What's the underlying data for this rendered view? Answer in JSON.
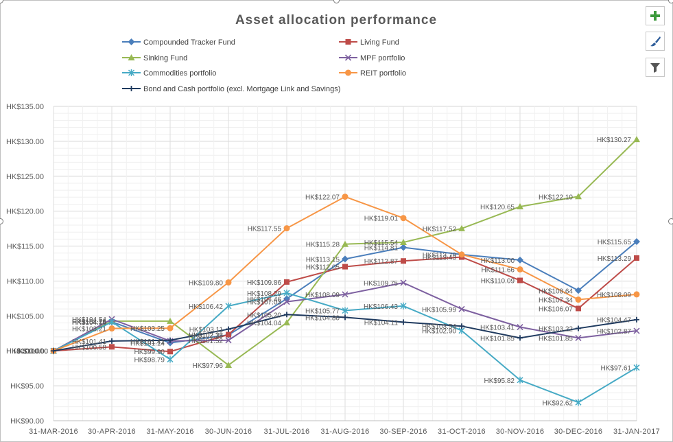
{
  "chart_data": {
    "type": "line",
    "title": "Asset allocation performance",
    "categories": [
      "31-MAR-2016",
      "30-APR-2016",
      "31-MAY-2016",
      "30-JUN-2016",
      "31-JUL-2016",
      "31-AUG-2016",
      "30-SEP-2016",
      "31-OCT-2016",
      "30-NOV-2016",
      "30-DEC-2016",
      "31-JAN-2017"
    ],
    "y_ticks": [
      "HK$90.00",
      "HK$95.00",
      "HK$100.00",
      "HK$105.00",
      "HK$110.00",
      "HK$115.00",
      "HK$120.00",
      "HK$125.00",
      "HK$130.00",
      "HK$135.00"
    ],
    "ylim": [
      90,
      135
    ],
    "grid": true,
    "legend_position": "top",
    "series": [
      {
        "name": "Compounded Tracker Fund",
        "color": "#4a7ebb",
        "marker": "diamond",
        "values": [
          100.0,
          104.16,
          101.14,
          102.28,
          107.46,
          113.15,
          114.81,
          113.79,
          113.0,
          108.64,
          115.65
        ],
        "labels": [
          "HK$100.00",
          "HK$104.16",
          "HK$101.14",
          "HK$102.28",
          "HK$107.46",
          "HK$113.15",
          "HK$114.81",
          "HK$113.79",
          "HK$113.00",
          "HK$108.64",
          "HK$115.65"
        ]
      },
      {
        "name": "Living Fund",
        "color": "#be4b48",
        "marker": "square",
        "values": [
          100.0,
          100.58,
          99.9,
          102.33,
          109.86,
          112.05,
          112.87,
          113.43,
          110.09,
          106.07,
          113.29
        ],
        "labels": [
          "HK$100.00",
          "HK$100.58",
          "HK$99.90",
          "HK$102.33",
          "HK$109.86",
          "HK$112.05",
          "HK$112.87",
          "HK$113.43",
          "HK$110.09",
          "HK$106.07",
          "HK$113.29"
        ]
      },
      {
        "name": "Sinking Fund",
        "color": "#98b954",
        "marker": "triangle",
        "values": [
          100.0,
          104.26,
          104.26,
          97.96,
          104.04,
          115.28,
          115.54,
          117.52,
          120.65,
          122.1,
          130.27
        ],
        "labels": [
          "HK$100.00",
          "HK$104.26",
          "",
          "HK$97.96",
          "HK$104.04",
          "HK$115.28",
          "HK$115.54",
          "HK$117.52",
          "HK$120.65",
          "HK$122.10",
          "HK$130.27"
        ]
      },
      {
        "name": "MPF portfolio",
        "color": "#7d60a0",
        "marker": "x",
        "values": [
          100.0,
          104.54,
          101.41,
          101.52,
          107.03,
          108.09,
          109.75,
          105.99,
          103.41,
          101.85,
          102.87
        ],
        "labels": [
          "HK$100.00",
          "HK$104.54",
          "HK$101.41",
          "HK$101.52",
          "HK$107.03",
          "HK$108.09",
          "HK$109.75",
          "HK$105.99",
          "HK$103.41",
          "HK$101.85",
          "HK$102.87"
        ]
      },
      {
        "name": "Commodities portfolio",
        "color": "#46aac5",
        "marker": "star",
        "values": [
          100.0,
          104.14,
          98.79,
          106.42,
          108.29,
          105.77,
          106.43,
          102.9,
          95.82,
          92.62,
          97.61
        ],
        "labels": [
          "HK$100.00",
          "HK$104.14",
          "HK$98.79",
          "HK$106.42",
          "HK$108.29",
          "HK$105.77",
          "HK$106.43",
          "HK$102.90",
          "HK$95.82",
          "HK$92.62",
          "HK$97.61"
        ]
      },
      {
        "name": "REIT portfolio",
        "color": "#f79646",
        "marker": "circle",
        "values": [
          100.0,
          103.21,
          103.25,
          109.8,
          117.55,
          122.07,
          119.01,
          113.79,
          111.66,
          107.34,
          108.09
        ],
        "labels": [
          "HK$100.00",
          "HK$103.21",
          "HK$103.25",
          "HK$109.80",
          "HK$117.55",
          "HK$122.07",
          "HK$119.01",
          "",
          "HK$111.66",
          "HK$107.34",
          "HK$108.09"
        ]
      },
      {
        "name": "Bond and Cash portfolio (excl. Mortgage Link and Savings)",
        "color": "#1f3a5f",
        "marker": "plus",
        "values": [
          100.0,
          101.41,
          101.52,
          103.11,
          105.2,
          104.8,
          104.11,
          103.54,
          101.85,
          103.22,
          104.47
        ],
        "labels": [
          "HK$100.00",
          "HK$101.41",
          "",
          "HK$103.11",
          "HK$105.20",
          "HK$104.80",
          "HK$104.11",
          "HK$103.54",
          "HK$101.85",
          "HK$103.22",
          "HK$104.47"
        ]
      }
    ]
  },
  "toolbar": {
    "buttons": [
      {
        "icon": "plus-icon",
        "name": "chart-elements-button"
      },
      {
        "icon": "paintbrush-icon",
        "name": "chart-styles-button"
      },
      {
        "icon": "funnel-icon",
        "name": "chart-filters-button"
      }
    ]
  }
}
